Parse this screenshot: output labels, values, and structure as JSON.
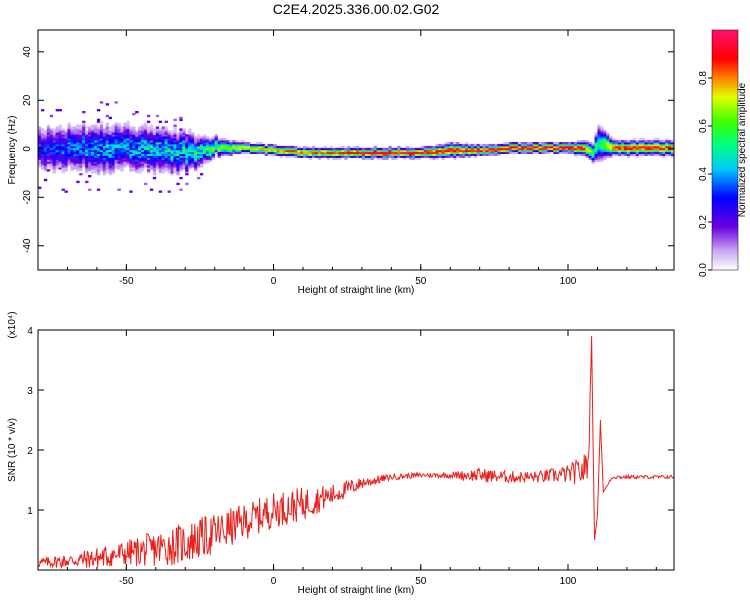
{
  "title": "C2E4.2025.336.00.02.G02",
  "chart_data": [
    {
      "type": "heatmap",
      "xlabel": "Height of straight line (km)",
      "ylabel": "Frequency (Hz)",
      "xlim": [
        -80,
        136
      ],
      "ylim": [
        -50,
        49
      ],
      "x_ticks": [
        -50,
        0,
        50,
        100
      ],
      "y_ticks": [
        -40,
        -20,
        0,
        20,
        40
      ],
      "colorbar": {
        "label": "Normalized spectral amplitude",
        "range": [
          0,
          1
        ],
        "ticks": [
          "0.0",
          "0.2",
          "0.4",
          "0.6",
          "0.8"
        ],
        "colormap": "rainbow (white-violet-blue-cyan-green-yellow-red-pink)"
      },
      "ridge": {
        "x": [
          -80,
          -70,
          -60,
          -50,
          -40,
          -30,
          -20,
          -10,
          0,
          10,
          20,
          30,
          40,
          50,
          60,
          70,
          80,
          90,
          100,
          105,
          108,
          110,
          115,
          120,
          136
        ],
        "center_hz": [
          0,
          0,
          0,
          0,
          -1,
          -2,
          0,
          0,
          -1,
          -2,
          -2,
          -2,
          -2,
          -2,
          -1,
          -1,
          0,
          0,
          0,
          0,
          -2,
          2,
          0,
          0,
          0
        ],
        "spread_hz": [
          10,
          10,
          11,
          10,
          10,
          9,
          4,
          2,
          2,
          2,
          2,
          2,
          2,
          2,
          3,
          2,
          2,
          2,
          2,
          3,
          4,
          8,
          3,
          3,
          3
        ],
        "peak_amplitude": [
          0.3,
          0.35,
          0.4,
          0.4,
          0.45,
          0.45,
          0.6,
          0.75,
          0.8,
          0.85,
          0.85,
          0.95,
          0.95,
          0.95,
          0.9,
          0.9,
          0.95,
          0.95,
          0.95,
          0.85,
          0.6,
          0.5,
          0.85,
          0.9,
          0.9
        ]
      }
    },
    {
      "type": "line",
      "xlabel": "Height of straight line (km)",
      "ylabel": "SNR (10 * v/v)",
      "y_multiplier": "(x10⁴)",
      "xlim": [
        -80,
        136
      ],
      "ylim": [
        0,
        4
      ],
      "x_ticks": [
        -50,
        0,
        50,
        100
      ],
      "y_ticks": [
        1,
        2,
        3,
        4
      ],
      "series": [
        {
          "color": "#e8201c",
          "x": [
            -80,
            -70,
            -60,
            -50,
            -40,
            -30,
            -20,
            -10,
            0,
            10,
            20,
            30,
            40,
            50,
            60,
            70,
            80,
            90,
            100,
            105,
            107,
            108,
            109,
            110,
            111,
            112,
            115,
            120,
            130,
            136
          ],
          "y": [
            0.12,
            0.15,
            0.2,
            0.28,
            0.35,
            0.45,
            0.6,
            0.8,
            1.0,
            1.1,
            1.25,
            1.45,
            1.55,
            1.58,
            1.58,
            1.58,
            1.55,
            1.55,
            1.6,
            1.65,
            1.8,
            3.9,
            0.5,
            0.9,
            2.5,
            1.3,
            1.55,
            1.55,
            1.55,
            1.55
          ],
          "noise_amplitude": [
            0.08,
            0.12,
            0.18,
            0.22,
            0.3,
            0.35,
            0.35,
            0.3,
            0.3,
            0.28,
            0.18,
            0.1,
            0.05,
            0.04,
            0.05,
            0.12,
            0.1,
            0.1,
            0.15,
            0.25,
            0.3,
            0,
            0,
            0,
            0,
            0,
            0.03,
            0.03,
            0.03,
            0.03
          ]
        }
      ]
    }
  ]
}
